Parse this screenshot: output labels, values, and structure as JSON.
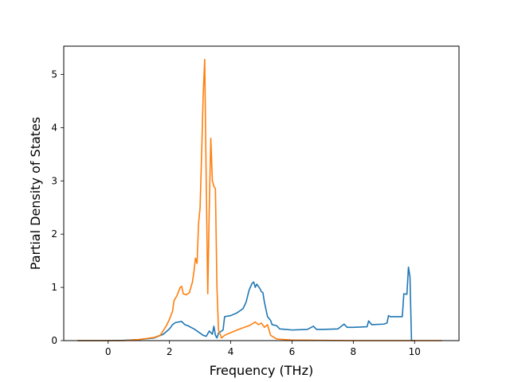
{
  "chart_data": {
    "type": "line",
    "title": "",
    "xlabel": "Frequency (THz)",
    "ylabel": "Partial Density of States",
    "xlim": [
      -1.45,
      11.45
    ],
    "ylim": [
      0,
      5.53
    ],
    "xticks": [
      0,
      2,
      4,
      6,
      8,
      10
    ],
    "yticks": [
      0,
      1,
      2,
      3,
      4,
      5
    ],
    "grid": false,
    "legend": "none",
    "series": [
      {
        "color": "#1f77b4",
        "points": [
          [
            -1.0,
            0.0
          ],
          [
            0.0,
            0.0
          ],
          [
            0.5,
            0.005
          ],
          [
            1.0,
            0.02
          ],
          [
            1.5,
            0.05
          ],
          [
            1.8,
            0.12
          ],
          [
            2.0,
            0.22
          ],
          [
            2.1,
            0.3
          ],
          [
            2.2,
            0.34
          ],
          [
            2.4,
            0.36
          ],
          [
            2.5,
            0.3
          ],
          [
            2.6,
            0.28
          ],
          [
            2.8,
            0.22
          ],
          [
            2.9,
            0.18
          ],
          [
            3.1,
            0.1
          ],
          [
            3.2,
            0.08
          ],
          [
            3.3,
            0.18
          ],
          [
            3.4,
            0.12
          ],
          [
            3.45,
            0.27
          ],
          [
            3.5,
            0.1
          ],
          [
            3.55,
            0.05
          ],
          [
            3.6,
            0.14
          ],
          [
            3.75,
            0.2
          ],
          [
            3.8,
            0.45
          ],
          [
            4.0,
            0.47
          ],
          [
            4.2,
            0.52
          ],
          [
            4.4,
            0.6
          ],
          [
            4.5,
            0.72
          ],
          [
            4.6,
            0.95
          ],
          [
            4.7,
            1.08
          ],
          [
            4.75,
            1.1
          ],
          [
            4.8,
            1.0
          ],
          [
            4.85,
            1.06
          ],
          [
            4.95,
            0.98
          ],
          [
            5.0,
            0.92
          ],
          [
            5.05,
            0.9
          ],
          [
            5.1,
            0.72
          ],
          [
            5.2,
            0.45
          ],
          [
            5.3,
            0.38
          ],
          [
            5.35,
            0.3
          ],
          [
            5.5,
            0.28
          ],
          [
            5.6,
            0.22
          ],
          [
            5.8,
            0.21
          ],
          [
            6.0,
            0.2
          ],
          [
            6.5,
            0.21
          ],
          [
            6.7,
            0.27
          ],
          [
            6.8,
            0.21
          ],
          [
            7.0,
            0.21
          ],
          [
            7.5,
            0.22
          ],
          [
            7.7,
            0.31
          ],
          [
            7.8,
            0.25
          ],
          [
            8.0,
            0.25
          ],
          [
            8.45,
            0.26
          ],
          [
            8.5,
            0.37
          ],
          [
            8.6,
            0.3
          ],
          [
            9.0,
            0.31
          ],
          [
            9.1,
            0.33
          ],
          [
            9.15,
            0.47
          ],
          [
            9.2,
            0.45
          ],
          [
            9.6,
            0.45
          ],
          [
            9.65,
            0.88
          ],
          [
            9.75,
            0.87
          ],
          [
            9.8,
            1.38
          ],
          [
            9.85,
            1.2
          ],
          [
            9.9,
            0.0
          ],
          [
            10.0,
            0.0
          ]
        ]
      },
      {
        "color": "#ff7f0e",
        "points": [
          [
            -1.0,
            0.0
          ],
          [
            0.5,
            0.0
          ],
          [
            1.0,
            0.02
          ],
          [
            1.5,
            0.06
          ],
          [
            1.7,
            0.1
          ],
          [
            1.9,
            0.28
          ],
          [
            2.0,
            0.4
          ],
          [
            2.1,
            0.55
          ],
          [
            2.15,
            0.75
          ],
          [
            2.25,
            0.85
          ],
          [
            2.35,
            1.0
          ],
          [
            2.4,
            1.02
          ],
          [
            2.45,
            0.88
          ],
          [
            2.55,
            0.86
          ],
          [
            2.65,
            0.9
          ],
          [
            2.75,
            1.1
          ],
          [
            2.8,
            1.3
          ],
          [
            2.85,
            1.55
          ],
          [
            2.9,
            1.45
          ],
          [
            2.95,
            2.2
          ],
          [
            3.0,
            2.5
          ],
          [
            3.05,
            3.5
          ],
          [
            3.1,
            4.6
          ],
          [
            3.15,
            5.28
          ],
          [
            3.2,
            3.0
          ],
          [
            3.25,
            0.88
          ],
          [
            3.3,
            2.5
          ],
          [
            3.35,
            3.8
          ],
          [
            3.4,
            3.0
          ],
          [
            3.45,
            2.9
          ],
          [
            3.5,
            2.85
          ],
          [
            3.55,
            1.0
          ],
          [
            3.6,
            0.2
          ],
          [
            3.7,
            0.05
          ],
          [
            3.8,
            0.1
          ],
          [
            4.0,
            0.15
          ],
          [
            4.3,
            0.22
          ],
          [
            4.6,
            0.28
          ],
          [
            4.8,
            0.35
          ],
          [
            4.9,
            0.3
          ],
          [
            5.0,
            0.33
          ],
          [
            5.1,
            0.25
          ],
          [
            5.2,
            0.3
          ],
          [
            5.3,
            0.1
          ],
          [
            5.5,
            0.03
          ],
          [
            6.0,
            0.01
          ],
          [
            7.0,
            0.005
          ],
          [
            8.0,
            0.0
          ],
          [
            10.0,
            0.0
          ],
          [
            10.9,
            0.0
          ]
        ]
      }
    ]
  }
}
